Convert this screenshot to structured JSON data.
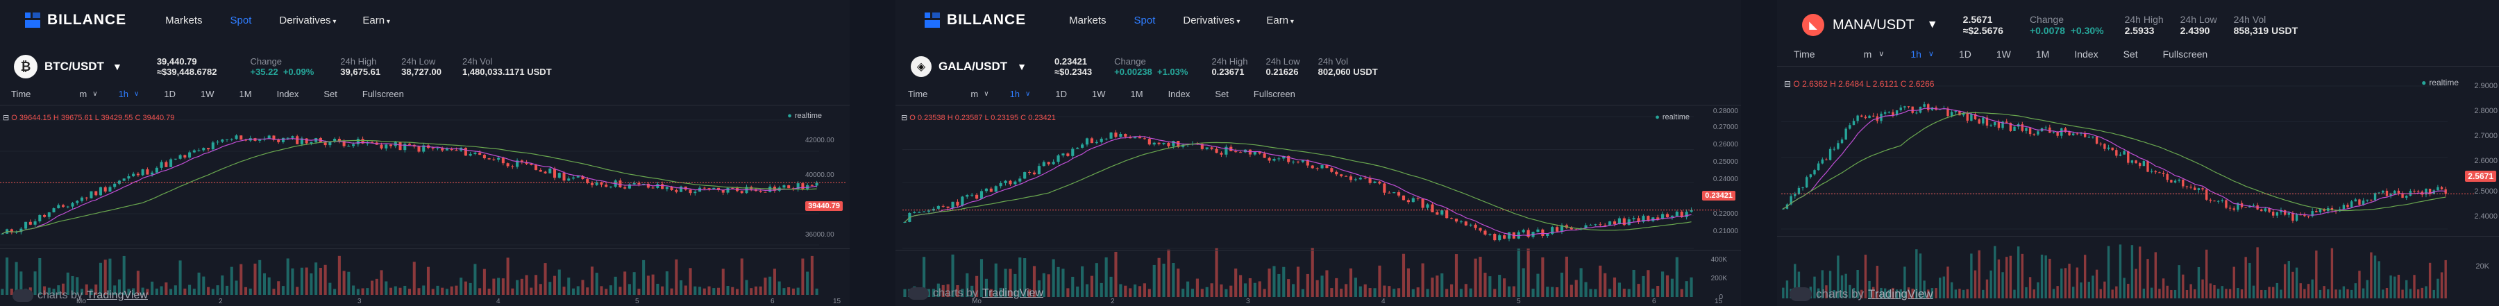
{
  "nav": {
    "brand": "BILLANCE",
    "markets": "Markets",
    "spot": "Spot",
    "derivatives": "Derivatives",
    "earn": "Earn"
  },
  "toolbar": {
    "time": "Time",
    "m": "m",
    "interval": "1h",
    "d1": "1D",
    "w1": "1W",
    "mo1": "1M",
    "index": "Index",
    "set": "Set",
    "fullscreen": "Fullscreen"
  },
  "labels": {
    "change": "Change",
    "high": "24h High",
    "low": "24h Low",
    "vol": "24h Vol",
    "realtime": "realtime",
    "charts_by": "charts by",
    "tradingview": "TradingView"
  },
  "panels": [
    {
      "pair": "BTC/USDT",
      "price": "39,440.79",
      "price_usd": "≈$39,448.6782",
      "change_abs": "+35.22",
      "change_pct": "+0.09%",
      "high": "39,675.61",
      "low": "38,727.00",
      "vol": "1,480,033.1171 USDT",
      "legend_prefix": "O 39644.15 H 39675.61 L 39429.55 C 39440.79",
      "last_tag": "39440.79",
      "y_ticks": [
        "42000.00",
        "40000.00",
        "38000.00",
        "36000.00"
      ],
      "x_ticks": [
        "Mo",
        "2",
        "3",
        "4",
        "5",
        "6",
        "15"
      ],
      "chart_data": {
        "type": "candlestick",
        "seed": 11,
        "start": 36600,
        "end": 39440.79,
        "shape": [
          0,
          0.55,
          1.0,
          0.95,
          0.85,
          0.55,
          0.45,
          0.5
        ],
        "ylim": [
          35500,
          43500
        ]
      }
    },
    {
      "pair": "GALA/USDT",
      "price": "0.23421",
      "price_usd": "≈$0.2343",
      "change_abs": "+0.00238",
      "change_pct": "+1.03%",
      "high": "0.23671",
      "low": "0.21626",
      "vol": "802,060 USDT",
      "legend_prefix": "O 0.23538 H 0.23587 L 0.23195 C 0.23421",
      "last_tag": "0.23421",
      "y_ticks": [
        "0.28000",
        "0.27000",
        "0.26000",
        "0.25000",
        "0.24000",
        "0.23000",
        "0.22000",
        "0.21000"
      ],
      "vol_ticks": [
        "400K",
        "200K",
        "0"
      ],
      "x_ticks": [
        "Mo",
        "2",
        "3",
        "4",
        "5",
        "6",
        "15"
      ],
      "chart_data": {
        "type": "candlestick",
        "seed": 23,
        "start": 0.245,
        "end": 0.23421,
        "shape": [
          0.3,
          0.55,
          0.95,
          0.85,
          0.75,
          0.5,
          0.15,
          0.25,
          0.35
        ],
        "ylim": [
          0.205,
          0.285
        ]
      }
    },
    {
      "pair": "MANA/USDT",
      "price": "2.5671",
      "price_usd": "≈$2.5676",
      "change_abs": "+0.0078",
      "change_pct": "+0.30%",
      "high": "2.5933",
      "low": "2.4390",
      "vol": "858,319 USDT",
      "legend_prefix": "O 2.6362 H 2.6484 L 2.6121 C 2.6266",
      "last_tag": "2.5671",
      "y_ticks": [
        "2.9000",
        "2.8000",
        "2.7000",
        "2.6000",
        "2.5000",
        "2.4000"
      ],
      "vol_ticks": [
        "20K"
      ],
      "x_ticks": [],
      "chart_data": {
        "type": "candlestick",
        "seed": 37,
        "start": 2.55,
        "end": 2.5671,
        "shape": [
          0.25,
          0.9,
          1.0,
          0.85,
          0.8,
          0.55,
          0.3,
          0.2,
          0.35,
          0.4
        ],
        "ylim": [
          2.37,
          2.97
        ]
      }
    }
  ],
  "colors": {
    "up": "#26a69a",
    "down": "#ef5350",
    "ma1": "#c04fd6",
    "ma2": "#6aa84f",
    "bg": "#161a25"
  }
}
